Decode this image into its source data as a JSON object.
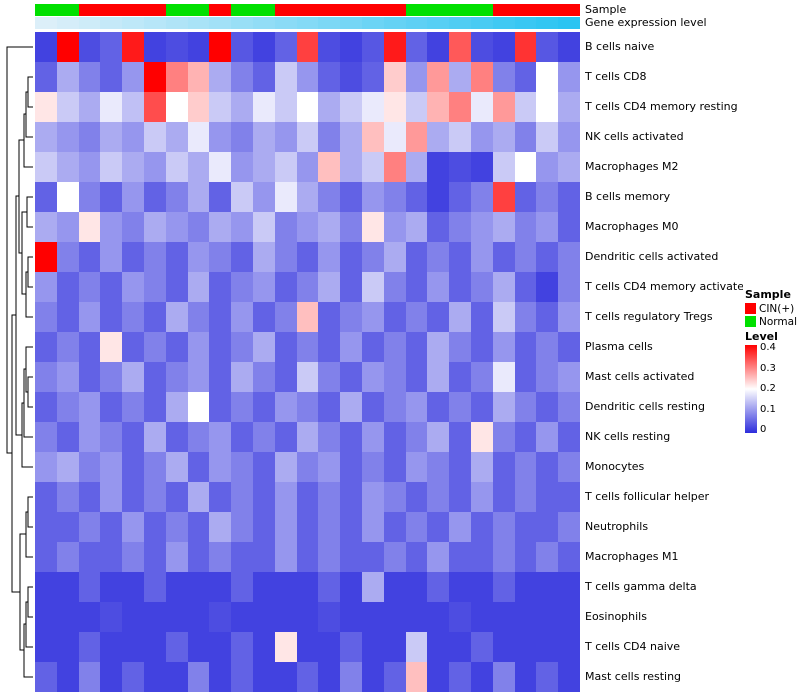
{
  "annotation_labels": {
    "sample": "Sample",
    "gene_expression": "Gene expression level"
  },
  "legend": {
    "sample_title": "Sample",
    "sample_items": [
      {
        "label": "CIN(+)",
        "color": "#FF0000"
      },
      {
        "label": "Normal",
        "color": "#00E000"
      }
    ],
    "level_title": "Level",
    "level_ticks": [
      "0.4",
      "0.3",
      "0.2",
      "0.1",
      "0"
    ]
  },
  "chart_data": {
    "type": "heatmap",
    "title": "",
    "rows": [
      "B cells naive",
      "T cells CD8",
      "T cells CD4 memory resting",
      "NK cells activated",
      "Macrophages M2",
      "B cells memory",
      "Macrophages M0",
      "Dendritic cells activated",
      "T cells CD4 memory activated",
      "T cells regulatory Tregs",
      "Plasma cells",
      "Mast cells activated",
      "Dendritic cells resting",
      "NK cells resting",
      "Monocytes",
      "T cells follicular helper",
      "Neutrophils",
      "Macrophages M1",
      "T cells gamma delta",
      "Eosinophils",
      "T cells CD4 naive",
      "Mast cells resting"
    ],
    "n_cols": 25,
    "value_range": [
      0,
      0.4
    ],
    "colormap": {
      "low": "#2D2DDC",
      "mid": "#FFFFFF",
      "high": "#FF0000"
    },
    "sample_colors": {
      "CIN(+)": "#FF0000",
      "Normal": "#00E000"
    },
    "gene_expression_gradient": [
      "#DCEFF9",
      "#2BC4F2"
    ],
    "column_annotations": {
      "sample": [
        "Normal",
        "Normal",
        "CIN(+)",
        "CIN(+)",
        "CIN(+)",
        "CIN(+)",
        "Normal",
        "Normal",
        "CIN(+)",
        "Normal",
        "Normal",
        "CIN(+)",
        "CIN(+)",
        "CIN(+)",
        "CIN(+)",
        "CIN(+)",
        "CIN(+)",
        "Normal",
        "Normal",
        "Normal",
        "Normal",
        "CIN(+)",
        "CIN(+)",
        "CIN(+)",
        "CIN(+)"
      ],
      "gene_expression_level": [
        0,
        0.04,
        0.08,
        0.13,
        0.17,
        0.21,
        0.25,
        0.29,
        0.33,
        0.38,
        0.42,
        0.46,
        0.5,
        0.54,
        0.58,
        0.63,
        0.67,
        0.71,
        0.75,
        0.79,
        0.83,
        0.88,
        0.92,
        0.96,
        1
      ]
    },
    "values": [
      [
        0.02,
        0.4,
        0.03,
        0.05,
        0.38,
        0.02,
        0.03,
        0.02,
        0.4,
        0.04,
        0.02,
        0.05,
        0.35,
        0.03,
        0.02,
        0.04,
        0.38,
        0.05,
        0.02,
        0.33,
        0.03,
        0.02,
        0.36,
        0.04,
        0.02
      ],
      [
        0.05,
        0.12,
        0.08,
        0.05,
        0.1,
        0.4,
        0.3,
        0.26,
        0.12,
        0.08,
        0.05,
        0.15,
        0.1,
        0.05,
        0.03,
        0.05,
        0.24,
        0.1,
        0.28,
        0.12,
        0.3,
        0.08,
        0.05,
        0.2,
        0.1
      ],
      [
        0.22,
        0.15,
        0.12,
        0.18,
        0.14,
        0.34,
        0.2,
        0.24,
        0.15,
        0.12,
        0.18,
        0.15,
        0.2,
        0.12,
        0.15,
        0.18,
        0.22,
        0.15,
        0.26,
        0.3,
        0.18,
        0.28,
        0.15,
        0.2,
        0.12
      ],
      [
        0.12,
        0.1,
        0.08,
        0.12,
        0.1,
        0.15,
        0.12,
        0.18,
        0.1,
        0.08,
        0.12,
        0.1,
        0.15,
        0.08,
        0.12,
        0.25,
        0.18,
        0.28,
        0.12,
        0.15,
        0.1,
        0.12,
        0.08,
        0.15,
        0.1
      ],
      [
        0.15,
        0.12,
        0.1,
        0.15,
        0.12,
        0.1,
        0.15,
        0.12,
        0.18,
        0.1,
        0.12,
        0.15,
        0.1,
        0.25,
        0.12,
        0.15,
        0.3,
        0.12,
        0.02,
        0.03,
        0.02,
        0.15,
        0.2,
        0.1,
        0.12
      ],
      [
        0.05,
        0.2,
        0.08,
        0.05,
        0.1,
        0.05,
        0.08,
        0.12,
        0.05,
        0.15,
        0.1,
        0.18,
        0.12,
        0.08,
        0.05,
        0.1,
        0.08,
        0.05,
        0.02,
        0.05,
        0.08,
        0.35,
        0.05,
        0.08,
        0.05
      ],
      [
        0.12,
        0.1,
        0.22,
        0.1,
        0.08,
        0.12,
        0.1,
        0.08,
        0.12,
        0.1,
        0.15,
        0.08,
        0.1,
        0.12,
        0.08,
        0.22,
        0.1,
        0.12,
        0.05,
        0.08,
        0.1,
        0.12,
        0.08,
        0.1,
        0.05
      ],
      [
        0.4,
        0.08,
        0.05,
        0.1,
        0.05,
        0.08,
        0.05,
        0.1,
        0.08,
        0.05,
        0.12,
        0.08,
        0.05,
        0.1,
        0.05,
        0.08,
        0.12,
        0.05,
        0.08,
        0.05,
        0.1,
        0.05,
        0.08,
        0.05,
        0.08
      ],
      [
        0.1,
        0.05,
        0.08,
        0.05,
        0.1,
        0.08,
        0.05,
        0.12,
        0.05,
        0.08,
        0.1,
        0.05,
        0.08,
        0.12,
        0.05,
        0.15,
        0.08,
        0.05,
        0.1,
        0.05,
        0.08,
        0.12,
        0.05,
        0.02,
        0.08
      ],
      [
        0.08,
        0.05,
        0.1,
        0.05,
        0.08,
        0.05,
        0.12,
        0.08,
        0.05,
        0.1,
        0.05,
        0.08,
        0.25,
        0.05,
        0.08,
        0.1,
        0.05,
        0.08,
        0.05,
        0.12,
        0.05,
        0.15,
        0.08,
        0.05,
        0.1
      ],
      [
        0.05,
        0.08,
        0.05,
        0.22,
        0.05,
        0.08,
        0.05,
        0.1,
        0.05,
        0.08,
        0.12,
        0.05,
        0.08,
        0.05,
        0.1,
        0.05,
        0.08,
        0.05,
        0.12,
        0.08,
        0.05,
        0.1,
        0.05,
        0.08,
        0.05
      ],
      [
        0.08,
        0.1,
        0.05,
        0.08,
        0.12,
        0.05,
        0.08,
        0.1,
        0.05,
        0.12,
        0.08,
        0.05,
        0.15,
        0.08,
        0.05,
        0.1,
        0.08,
        0.05,
        0.12,
        0.05,
        0.08,
        0.18,
        0.05,
        0.08,
        0.1
      ],
      [
        0.05,
        0.08,
        0.1,
        0.05,
        0.08,
        0.05,
        0.12,
        0.2,
        0.05,
        0.08,
        0.05,
        0.1,
        0.08,
        0.05,
        0.12,
        0.05,
        0.08,
        0.1,
        0.05,
        0.08,
        0.05,
        0.12,
        0.08,
        0.05,
        0.08
      ],
      [
        0.08,
        0.05,
        0.1,
        0.08,
        0.05,
        0.12,
        0.05,
        0.08,
        0.1,
        0.05,
        0.08,
        0.05,
        0.12,
        0.08,
        0.05,
        0.1,
        0.05,
        0.08,
        0.12,
        0.05,
        0.22,
        0.08,
        0.05,
        0.1,
        0.05
      ],
      [
        0.1,
        0.12,
        0.08,
        0.1,
        0.05,
        0.08,
        0.12,
        0.05,
        0.1,
        0.08,
        0.05,
        0.12,
        0.08,
        0.1,
        0.05,
        0.08,
        0.05,
        0.1,
        0.08,
        0.05,
        0.12,
        0.05,
        0.08,
        0.05,
        0.08
      ],
      [
        0.05,
        0.08,
        0.05,
        0.1,
        0.05,
        0.08,
        0.05,
        0.12,
        0.05,
        0.08,
        0.05,
        0.1,
        0.05,
        0.08,
        0.05,
        0.1,
        0.08,
        0.05,
        0.08,
        0.05,
        0.1,
        0.05,
        0.08,
        0.05,
        0.05
      ],
      [
        0.05,
        0.05,
        0.08,
        0.05,
        0.1,
        0.05,
        0.08,
        0.05,
        0.12,
        0.08,
        0.05,
        0.1,
        0.05,
        0.08,
        0.05,
        0.1,
        0.05,
        0.08,
        0.05,
        0.1,
        0.05,
        0.08,
        0.05,
        0.05,
        0.08
      ],
      [
        0.05,
        0.08,
        0.05,
        0.05,
        0.08,
        0.05,
        0.1,
        0.05,
        0.08,
        0.05,
        0.05,
        0.1,
        0.05,
        0.08,
        0.05,
        0.05,
        0.08,
        0.05,
        0.1,
        0.05,
        0.05,
        0.08,
        0.05,
        0.08,
        0.05
      ],
      [
        0.02,
        0.02,
        0.05,
        0.02,
        0.02,
        0.05,
        0.02,
        0.02,
        0.02,
        0.05,
        0.02,
        0.02,
        0.02,
        0.05,
        0.02,
        0.12,
        0.02,
        0.02,
        0.05,
        0.02,
        0.02,
        0.05,
        0.02,
        0.02,
        0.02
      ],
      [
        0.02,
        0.02,
        0.02,
        0.03,
        0.02,
        0.02,
        0.02,
        0.02,
        0.03,
        0.02,
        0.02,
        0.02,
        0.02,
        0.03,
        0.02,
        0.02,
        0.02,
        0.02,
        0.02,
        0.03,
        0.02,
        0.02,
        0.02,
        0.02,
        0.02
      ],
      [
        0.02,
        0.02,
        0.05,
        0.02,
        0.02,
        0.02,
        0.05,
        0.02,
        0.02,
        0.05,
        0.02,
        0.22,
        0.02,
        0.02,
        0.05,
        0.02,
        0.02,
        0.15,
        0.02,
        0.02,
        0.05,
        0.02,
        0.02,
        0.02,
        0.02
      ],
      [
        0.05,
        0.02,
        0.08,
        0.02,
        0.05,
        0.02,
        0.02,
        0.08,
        0.02,
        0.05,
        0.02,
        0.02,
        0.05,
        0.02,
        0.08,
        0.02,
        0.05,
        0.25,
        0.02,
        0.05,
        0.02,
        0.08,
        0.02,
        0.05,
        0.02
      ]
    ]
  }
}
